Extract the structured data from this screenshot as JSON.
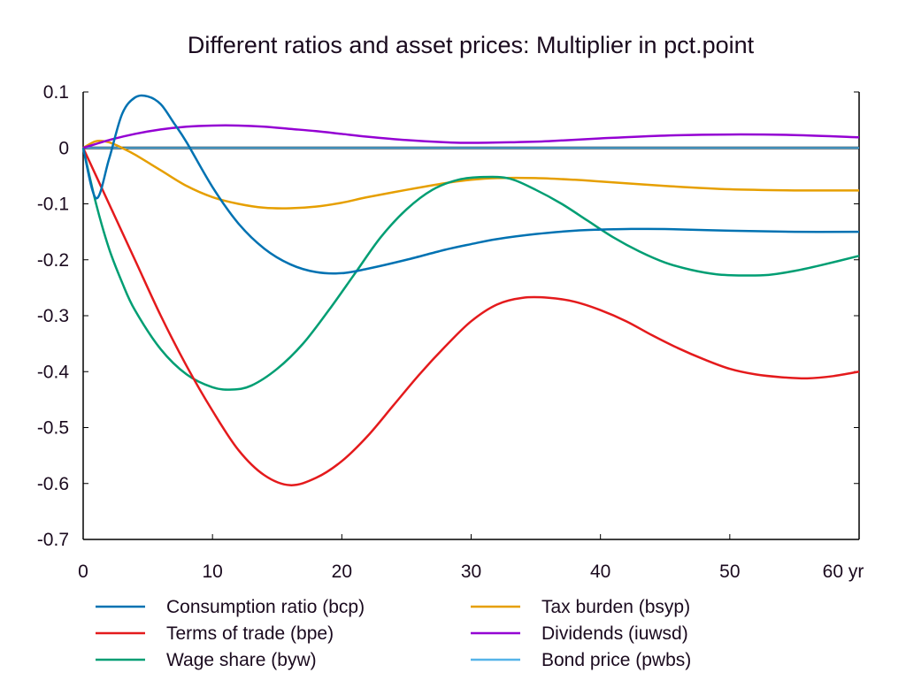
{
  "chart_data": {
    "type": "line",
    "title": "Different ratios and asset prices: Multiplier in pct.point",
    "xlabel": "",
    "ylabel": "",
    "x_unit_label": "yr",
    "xlim": [
      0,
      60
    ],
    "ylim": [
      -0.7,
      0.1
    ],
    "x_ticks": [
      0,
      10,
      20,
      30,
      40,
      50,
      60
    ],
    "x_tick_labels": [
      "0",
      "10",
      "20",
      "30",
      "40",
      "50",
      "60 yr"
    ],
    "y_ticks": [
      0.1,
      0,
      -0.1,
      -0.2,
      -0.3,
      -0.4,
      -0.5,
      -0.6,
      -0.7
    ],
    "y_tick_labels": [
      "0.1",
      "0",
      "-0.1",
      "-0.2",
      "-0.3",
      "-0.4",
      "-0.5",
      "-0.6",
      "-0.7"
    ],
    "grid": false,
    "legend_position": "bottom",
    "series": [
      {
        "name": "Consumption ratio (bcp)",
        "color": "#0072b2",
        "x": [
          0,
          1,
          2,
          3,
          4,
          5,
          6,
          7,
          8,
          10,
          12,
          14,
          16,
          18,
          20,
          22,
          25,
          28,
          30,
          32,
          35,
          38,
          40,
          42,
          45,
          50,
          55,
          60
        ],
        "values": [
          0,
          -0.09,
          -0.02,
          0.06,
          0.09,
          0.092,
          0.078,
          0.045,
          0.01,
          -0.07,
          -0.135,
          -0.18,
          -0.208,
          -0.222,
          -0.224,
          -0.216,
          -0.2,
          -0.182,
          -0.172,
          -0.163,
          -0.154,
          -0.148,
          -0.146,
          -0.145,
          -0.145,
          -0.148,
          -0.15,
          -0.15
        ]
      },
      {
        "name": "Terms of trade (bpe)",
        "color": "#e41a1c",
        "x": [
          0,
          2,
          4,
          6,
          8,
          10,
          12,
          14,
          16,
          18,
          20,
          22,
          24,
          26,
          28,
          30,
          32,
          34,
          36,
          38,
          40,
          42,
          44,
          46,
          48,
          50,
          52,
          54,
          56,
          58,
          60
        ],
        "values": [
          0,
          -0.1,
          -0.2,
          -0.3,
          -0.39,
          -0.47,
          -0.54,
          -0.585,
          -0.603,
          -0.59,
          -0.56,
          -0.515,
          -0.46,
          -0.405,
          -0.355,
          -0.31,
          -0.28,
          -0.268,
          -0.268,
          -0.275,
          -0.29,
          -0.31,
          -0.335,
          -0.358,
          -0.378,
          -0.395,
          -0.405,
          -0.41,
          -0.412,
          -0.408,
          -0.4
        ]
      },
      {
        "name": "Wage share (byw)",
        "color": "#009e73",
        "x": [
          0,
          1,
          2,
          3,
          4,
          6,
          8,
          10,
          11.5,
          13,
          15,
          17,
          19,
          21,
          23,
          25,
          27,
          29,
          31,
          33,
          35,
          37,
          39,
          41,
          43,
          45,
          47,
          49,
          51,
          53,
          55,
          57,
          60
        ],
        "values": [
          0,
          -0.1,
          -0.18,
          -0.24,
          -0.29,
          -0.36,
          -0.405,
          -0.428,
          -0.432,
          -0.425,
          -0.395,
          -0.35,
          -0.29,
          -0.225,
          -0.16,
          -0.11,
          -0.075,
          -0.057,
          -0.052,
          -0.055,
          -0.075,
          -0.1,
          -0.13,
          -0.16,
          -0.185,
          -0.205,
          -0.218,
          -0.226,
          -0.228,
          -0.227,
          -0.22,
          -0.21,
          -0.193
        ]
      },
      {
        "name": "Tax burden (bsyp)",
        "color": "#e69f00",
        "x": [
          0,
          1,
          2,
          3,
          4,
          6,
          8,
          10,
          12,
          14,
          16,
          18,
          20,
          22,
          25,
          28,
          30,
          32,
          35,
          38,
          40,
          45,
          50,
          55,
          60
        ],
        "values": [
          0,
          0.012,
          0.01,
          0.0,
          -0.012,
          -0.04,
          -0.068,
          -0.088,
          -0.1,
          -0.107,
          -0.108,
          -0.105,
          -0.098,
          -0.088,
          -0.075,
          -0.063,
          -0.057,
          -0.054,
          -0.054,
          -0.057,
          -0.06,
          -0.068,
          -0.074,
          -0.076,
          -0.076
        ]
      },
      {
        "name": "Dividends (iuwsd)",
        "color": "#9400d3",
        "x": [
          0,
          2,
          4,
          6,
          8,
          10,
          12,
          14,
          16,
          18,
          20,
          22,
          25,
          28,
          30,
          33,
          36,
          40,
          45,
          50,
          55,
          60
        ],
        "values": [
          0,
          0.014,
          0.025,
          0.033,
          0.038,
          0.04,
          0.04,
          0.038,
          0.034,
          0.03,
          0.025,
          0.02,
          0.014,
          0.01,
          0.009,
          0.01,
          0.012,
          0.017,
          0.022,
          0.024,
          0.023,
          0.019
        ]
      },
      {
        "name": "Bond price (pwbs)",
        "color": "#56b4e9",
        "x": [
          0,
          60
        ],
        "values": [
          0,
          0
        ]
      }
    ]
  }
}
